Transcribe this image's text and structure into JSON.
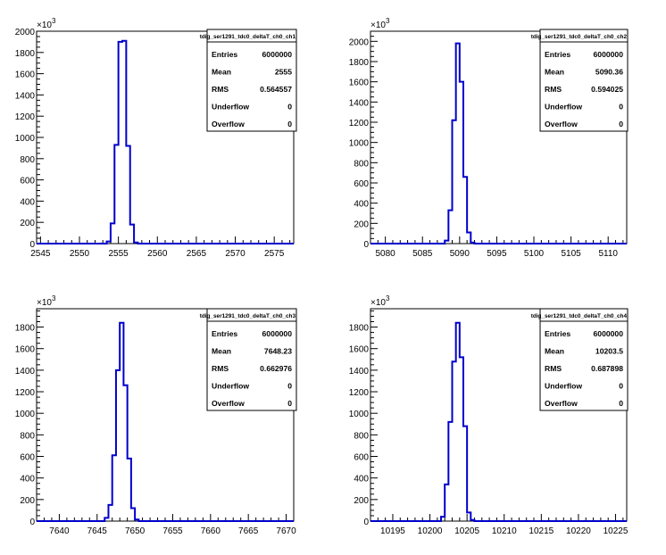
{
  "chart_data": [
    {
      "type": "histogram",
      "title": "tdig_ser1291_tdc0_deltaT_ch0_ch1",
      "xlim": [
        2544.5,
        2577.5
      ],
      "ylim": [
        0,
        2000
      ],
      "y_multiplier_label": "×10",
      "y_multiplier_exp": "3",
      "xticks": [
        2545,
        2550,
        2555,
        2560,
        2565,
        2570,
        2575
      ],
      "yticks": [
        0,
        200,
        400,
        600,
        800,
        1000,
        1200,
        1400,
        1600,
        1800,
        2000
      ],
      "bins": [
        [
          2553.5,
          2554,
          20
        ],
        [
          2554,
          2554.5,
          190
        ],
        [
          2554.5,
          2555,
          930
        ],
        [
          2555,
          2555.5,
          1900
        ],
        [
          2555.5,
          2556,
          1910
        ],
        [
          2556,
          2556.5,
          920
        ],
        [
          2556.5,
          2557,
          180
        ],
        [
          2557,
          2557.5,
          10
        ]
      ],
      "stats": [
        {
          "label": "Entries",
          "value": "6000000"
        },
        {
          "label": "Mean",
          "value": "2555"
        },
        {
          "label": "RMS",
          "value": "0.564557"
        },
        {
          "label": "Underflow",
          "value": "0"
        },
        {
          "label": "Overflow",
          "value": "0"
        }
      ]
    },
    {
      "type": "histogram",
      "title": "tdig_ser1291_tdc0_deltaT_ch0_ch2",
      "xlim": [
        5078,
        5112.5
      ],
      "ylim": [
        0,
        2100
      ],
      "y_multiplier_label": "×10",
      "y_multiplier_exp": "3",
      "xticks": [
        5080,
        5085,
        5090,
        5095,
        5100,
        5105,
        5110
      ],
      "yticks": [
        0,
        200,
        400,
        600,
        800,
        1000,
        1200,
        1400,
        1600,
        1800,
        2000
      ],
      "bins": [
        [
          5088,
          5088.5,
          30
        ],
        [
          5088.5,
          5089,
          330
        ],
        [
          5089,
          5089.5,
          1220
        ],
        [
          5089.5,
          5090,
          1980
        ],
        [
          5090,
          5090.5,
          1600
        ],
        [
          5090.5,
          5091,
          660
        ],
        [
          5091,
          5091.5,
          110
        ],
        [
          5091.5,
          5092,
          10
        ]
      ],
      "stats": [
        {
          "label": "Entries",
          "value": "6000000"
        },
        {
          "label": "Mean",
          "value": "5090.36"
        },
        {
          "label": "RMS",
          "value": "0.594025"
        },
        {
          "label": "Underflow",
          "value": "0"
        },
        {
          "label": "Overflow",
          "value": "0"
        }
      ]
    },
    {
      "type": "histogram",
      "title": "tdig_ser1291_tdc0_deltaT_ch0_ch3",
      "xlim": [
        7637,
        7671
      ],
      "ylim": [
        0,
        1970
      ],
      "y_multiplier_label": "×10",
      "y_multiplier_exp": "3",
      "xticks": [
        7640,
        7645,
        7650,
        7655,
        7660,
        7665,
        7670
      ],
      "yticks": [
        0,
        200,
        400,
        600,
        800,
        1000,
        1200,
        1400,
        1600,
        1800
      ],
      "bins": [
        [
          7646,
          7646.5,
          30
        ],
        [
          7646.5,
          7647,
          150
        ],
        [
          7647,
          7647.5,
          610
        ],
        [
          7647.5,
          7648,
          1400
        ],
        [
          7648,
          7648.5,
          1840
        ],
        [
          7648.5,
          7649,
          1260
        ],
        [
          7649,
          7649.5,
          580
        ],
        [
          7649.5,
          7650,
          120
        ],
        [
          7650,
          7650.5,
          15
        ]
      ],
      "stats": [
        {
          "label": "Entries",
          "value": "6000000"
        },
        {
          "label": "Mean",
          "value": "7648.23"
        },
        {
          "label": "RMS",
          "value": "0.662976"
        },
        {
          "label": "Underflow",
          "value": "0"
        },
        {
          "label": "Overflow",
          "value": "0"
        }
      ]
    },
    {
      "type": "histogram",
      "title": "tdig_ser1291_tdc0_deltaT_ch0_ch4",
      "xlim": [
        10192,
        10226.5
      ],
      "ylim": [
        0,
        1970
      ],
      "y_multiplier_label": "×10",
      "y_multiplier_exp": "3",
      "xticks": [
        10195,
        10200,
        10205,
        10210,
        10215,
        10220,
        10225
      ],
      "yticks": [
        0,
        200,
        400,
        600,
        800,
        1000,
        1200,
        1400,
        1600,
        1800
      ],
      "bins": [
        [
          10201.5,
          10202,
          40
        ],
        [
          10202,
          10202.5,
          340
        ],
        [
          10202.5,
          10203,
          920
        ],
        [
          10203,
          10203.5,
          1480
        ],
        [
          10203.5,
          10204,
          1840
        ],
        [
          10204,
          10204.5,
          1520
        ],
        [
          10204.5,
          10205,
          880
        ],
        [
          10205,
          10205.5,
          80
        ],
        [
          10205.5,
          10206,
          10
        ]
      ],
      "stats": [
        {
          "label": "Entries",
          "value": "6000000"
        },
        {
          "label": "Mean",
          "value": "10203.5"
        },
        {
          "label": "RMS",
          "value": "0.687898"
        },
        {
          "label": "Underflow",
          "value": "0"
        },
        {
          "label": "Overflow",
          "value": "0"
        }
      ]
    }
  ]
}
